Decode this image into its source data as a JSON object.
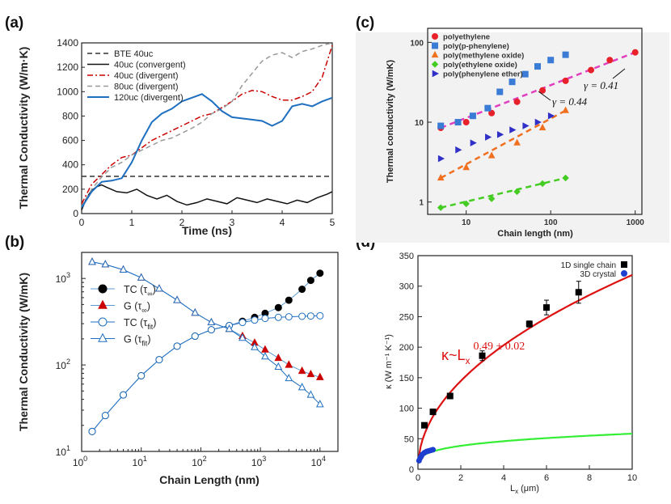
{
  "panel_labels": [
    "(a)",
    "(b)",
    "(c)",
    "(d)"
  ],
  "chart_data": [
    {
      "panel": "(a)",
      "type": "line",
      "xlabel": "Time (ns)",
      "ylabel": "Thermal Conductivity (W/m·K)",
      "xlim": [
        0,
        5
      ],
      "ylim": [
        0,
        1400
      ],
      "xticks": [
        "0",
        "1",
        "2",
        "3",
        "4",
        "5"
      ],
      "yticks": [
        "0",
        "200",
        "400",
        "600",
        "800",
        "1000",
        "1200",
        "1400"
      ],
      "legend_position": "top-left",
      "series": [
        {
          "name": "BTE 40uc",
          "color": "#333333",
          "style": "dashed",
          "x": [
            0,
            5
          ],
          "y": [
            305,
            305
          ]
        },
        {
          "name": "40uc (convergent)",
          "color": "#111111",
          "style": "solid",
          "x": [
            0,
            0.1,
            0.2,
            0.3,
            0.4,
            0.5,
            0.7,
            0.9,
            1.1,
            1.3,
            1.5,
            1.7,
            1.9,
            2.1,
            2.3,
            2.5,
            2.7,
            2.9,
            3.1,
            3.3,
            3.5,
            3.7,
            3.9,
            4.1,
            4.3,
            4.5,
            4.7,
            4.9,
            5.0
          ],
          "y": [
            30,
            130,
            190,
            220,
            235,
            215,
            180,
            170,
            200,
            150,
            120,
            150,
            100,
            70,
            90,
            120,
            100,
            80,
            130,
            110,
            90,
            120,
            100,
            80,
            110,
            90,
            130,
            160,
            180
          ]
        },
        {
          "name": "40uc (divergent)",
          "color": "#cc0000",
          "style": "dashdot",
          "x": [
            0,
            0.2,
            0.4,
            0.6,
            0.8,
            1.0,
            1.2,
            1.4,
            1.6,
            1.8,
            2.0,
            2.2,
            2.4,
            2.6,
            2.8,
            3.0,
            3.2,
            3.4,
            3.6,
            3.8,
            4.0,
            4.2,
            4.4,
            4.6,
            4.8,
            5.0
          ],
          "y": [
            80,
            240,
            320,
            400,
            460,
            480,
            540,
            600,
            640,
            680,
            720,
            760,
            800,
            820,
            870,
            920,
            980,
            1010,
            1000,
            960,
            930,
            930,
            960,
            1000,
            1120,
            1380
          ]
        },
        {
          "name": "80uc (divergent)",
          "color": "#999999",
          "style": "dashed",
          "x": [
            0,
            0.2,
            0.4,
            0.6,
            0.8,
            1.0,
            1.2,
            1.4,
            1.6,
            1.8,
            2.0,
            2.2,
            2.4,
            2.6,
            2.8,
            3.0,
            3.2,
            3.4,
            3.6,
            3.8,
            4.0,
            4.2,
            4.4,
            4.6,
            4.8,
            5.0
          ],
          "y": [
            60,
            200,
            300,
            380,
            420,
            480,
            520,
            560,
            600,
            620,
            660,
            700,
            750,
            820,
            860,
            920,
            1050,
            1150,
            1250,
            1300,
            1320,
            1280,
            1330,
            1350,
            1380,
            1400
          ]
        },
        {
          "name": "120uc (divergent)",
          "color": "#1f6fc0",
          "style": "solid",
          "x": [
            0,
            0.2,
            0.4,
            0.6,
            0.8,
            1.0,
            1.2,
            1.4,
            1.6,
            1.8,
            2.0,
            2.2,
            2.4,
            2.6,
            2.8,
            3.0,
            3.2,
            3.4,
            3.6,
            3.8,
            4.0,
            4.2,
            4.4,
            4.6,
            4.8,
            5.0
          ],
          "y": [
            50,
            180,
            260,
            270,
            290,
            420,
            600,
            750,
            820,
            860,
            920,
            950,
            980,
            920,
            840,
            790,
            780,
            770,
            760,
            720,
            760,
            880,
            900,
            880,
            920,
            950
          ]
        }
      ]
    },
    {
      "panel": "(b)",
      "type": "line",
      "xlabel": "Chain Length (nm)",
      "ylabel": "Thermal Conductivity (W/mK)",
      "xscale": "log",
      "yscale": "log",
      "xlim": [
        1,
        20000
      ],
      "ylim": [
        10,
        2000
      ],
      "xticks": [
        {
          "base": "10",
          "exp": "0"
        },
        {
          "base": "10",
          "exp": "1"
        },
        {
          "base": "10",
          "exp": "2"
        },
        {
          "base": "10",
          "exp": "3"
        },
        {
          "base": "10",
          "exp": "4"
        }
      ],
      "yticks": [
        {
          "base": "10",
          "exp": "1"
        },
        {
          "base": "10",
          "exp": "2"
        },
        {
          "base": "10",
          "exp": "3"
        }
      ],
      "legend_position": "top-left",
      "x": [
        1.5,
        2.5,
        5,
        10,
        20,
        40,
        80,
        150,
        300,
        500,
        800,
        1200,
        2000,
        3000,
        5000,
        7000,
        10000
      ],
      "series": [
        {
          "name": "TC (τ∞)",
          "label_main": "TC (τ",
          "label_sub": "∞",
          "marker": "filled-circle",
          "color": "#000000",
          "values": [
            17,
            26,
            45,
            75,
            115,
            165,
            215,
            255,
            285,
            320,
            355,
            395,
            460,
            560,
            750,
            950,
            1150
          ]
        },
        {
          "name": "G (τ∞)",
          "label_main": "G (τ",
          "label_sub": "∞",
          "marker": "filled-triangle",
          "color": "#cc0000",
          "values": [
            1550,
            1450,
            1260,
            1020,
            760,
            560,
            400,
            310,
            260,
            215,
            180,
            150,
            120,
            100,
            85,
            78,
            72
          ]
        },
        {
          "name": "TC (τfit)",
          "label_main": "TC (τ",
          "label_sub": "fit",
          "marker": "open-circle",
          "color": "#1f6fc0",
          "values": [
            17,
            26,
            45,
            75,
            115,
            165,
            215,
            255,
            285,
            310,
            330,
            345,
            355,
            360,
            365,
            368,
            370
          ]
        },
        {
          "name": "G (τfit)",
          "label_main": "G (τ",
          "label_sub": "fit",
          "marker": "open-triangle",
          "color": "#1f6fc0",
          "values": [
            1550,
            1450,
            1260,
            1020,
            760,
            560,
            400,
            310,
            260,
            205,
            160,
            125,
            95,
            70,
            55,
            45,
            35
          ]
        }
      ]
    },
    {
      "panel": "(c)",
      "type": "scatter",
      "xlabel": "Chain length (nm)",
      "ylabel": "Thermal conductivity (W/mK)",
      "xscale": "log",
      "yscale": "log",
      "xlim": [
        3.5,
        1200
      ],
      "ylim": [
        0.7,
        150
      ],
      "xticks": [
        "10",
        "100",
        "1000"
      ],
      "yticks": [
        "1",
        "10",
        "100"
      ],
      "legend_position": "top-left",
      "annotations": [
        "γ = 0.41",
        "γ = 0.44"
      ],
      "series": [
        {
          "name": "polyethylene",
          "color": "#e8202a",
          "marker": "circle",
          "x": [
            5,
            10,
            20,
            40,
            80,
            150,
            300,
            500,
            1000
          ],
          "y": [
            8.5,
            10,
            13,
            18,
            25,
            33,
            45,
            60,
            75
          ]
        },
        {
          "name": "poly(p-phenylene)",
          "color": "#3a7bd5",
          "marker": "square",
          "x": [
            5,
            8,
            12,
            18,
            25,
            35,
            50,
            70,
            100,
            150
          ],
          "y": [
            9,
            10,
            12,
            15,
            24,
            32,
            40,
            50,
            60,
            70
          ]
        },
        {
          "name": "poly(methylene oxide)",
          "color": "#f07020",
          "marker": "triangle",
          "x": [
            5,
            10,
            20,
            40,
            80,
            150
          ],
          "y": [
            2.0,
            2.7,
            3.8,
            5.5,
            8.5,
            14
          ]
        },
        {
          "name": "poly(ethylene oxide)",
          "color": "#44cc22",
          "marker": "diamond",
          "x": [
            5,
            10,
            20,
            40,
            80,
            150
          ],
          "y": [
            0.85,
            0.95,
            1.1,
            1.35,
            1.7,
            2.0
          ]
        },
        {
          "name": "poly(phenylene ether)",
          "color": "#3030c8",
          "marker": "triangle-right",
          "x": [
            5,
            8,
            12,
            18,
            25,
            35,
            50,
            70,
            100
          ],
          "y": [
            3.5,
            4.5,
            5.5,
            6.5,
            7,
            8,
            9,
            10,
            12
          ]
        }
      ],
      "fits": [
        {
          "color": "#e040c0",
          "x": [
            5,
            1000
          ],
          "y": [
            8.5,
            75
          ]
        },
        {
          "color": "#f07020",
          "x": [
            5,
            150
          ],
          "y": [
            2.0,
            14
          ]
        },
        {
          "color": "#44cc22",
          "x": [
            5,
            150
          ],
          "y": [
            0.85,
            2.0
          ]
        }
      ]
    },
    {
      "panel": "(d)",
      "type": "scatter",
      "xlabel": "L",
      "xlabel_sub": "x",
      "xlabel_unit": "(μm)",
      "ylabel": "κ (W m⁻¹ K⁻¹)",
      "xlim": [
        0,
        10
      ],
      "ylim": [
        0,
        350
      ],
      "xticks": [
        "0",
        "2",
        "4",
        "6",
        "8",
        "10"
      ],
      "yticks": [
        "0",
        "50",
        "100",
        "150",
        "200",
        "250",
        "300",
        "350"
      ],
      "legend_position": "top-right",
      "annotation": {
        "main": "κ~L",
        "sub": "x",
        "exp": "0.49 ± 0.02",
        "color": "#dd1111"
      },
      "series": [
        {
          "name": "1D single chain",
          "color": "#000000",
          "marker": "square",
          "x": [
            0.3,
            0.7,
            1.5,
            3.0,
            5.2,
            6.0,
            7.5
          ],
          "y": [
            72,
            94,
            120,
            186,
            238,
            265,
            290
          ],
          "err": [
            3,
            3,
            3,
            8,
            5,
            12,
            18
          ]
        },
        {
          "name": "3D crystal",
          "color": "#1f3fd0",
          "marker": "circle",
          "x": [
            0.05,
            0.1,
            0.15,
            0.2,
            0.3,
            0.4,
            0.5,
            0.6,
            0.7
          ],
          "y": [
            14,
            18,
            21,
            24,
            27,
            29,
            30,
            31,
            32
          ]
        }
      ],
      "fits": [
        {
          "name": "1D fit",
          "color": "#dd1111",
          "form": "a*x^b",
          "a": 103,
          "b": 0.49
        },
        {
          "name": "3D fit",
          "color": "#33ee33",
          "form": "a*x^b",
          "a": 32,
          "b": 0.26
        }
      ]
    }
  ]
}
